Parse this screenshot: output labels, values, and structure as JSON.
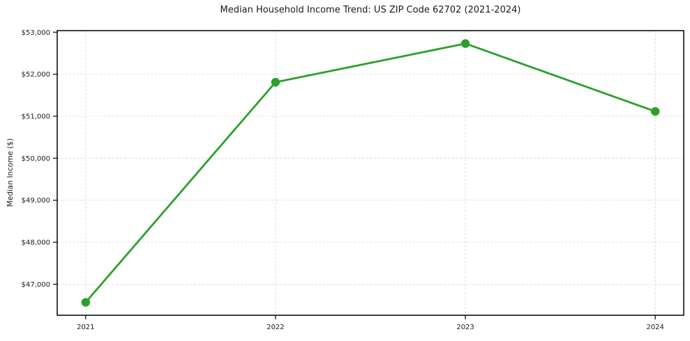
{
  "chart_data": {
    "type": "line",
    "title": "Median Household Income Trend: US ZIP Code 62702 (2021-2024)",
    "xlabel": "",
    "ylabel": "Median Income ($)",
    "x": [
      2021,
      2022,
      2023,
      2024
    ],
    "series": [
      {
        "name": "Median Household Income",
        "values": [
          46570,
          51810,
          52730,
          51115
        ]
      }
    ],
    "xtick_labels": [
      "2021",
      "2022",
      "2023",
      "2024"
    ],
    "yticks": [
      47000,
      48000,
      49000,
      50000,
      51000,
      52000,
      53000
    ],
    "ytick_labels": [
      "$47,000",
      "$48,000",
      "$49,000",
      "$50,000",
      "$51,000",
      "$52,000",
      "$53,000"
    ],
    "xlim": [
      2020.85,
      2024.15
    ],
    "ylim": [
      46262,
      53038
    ],
    "grid": true,
    "grid_style": "dashed",
    "legend": "none",
    "colors": {
      "line": "#2ca02c",
      "marker": "#2ca02c",
      "grid": "#d9d9d9",
      "axis": "#000000",
      "text": "#1a1a1a",
      "background": "#ffffff"
    }
  }
}
